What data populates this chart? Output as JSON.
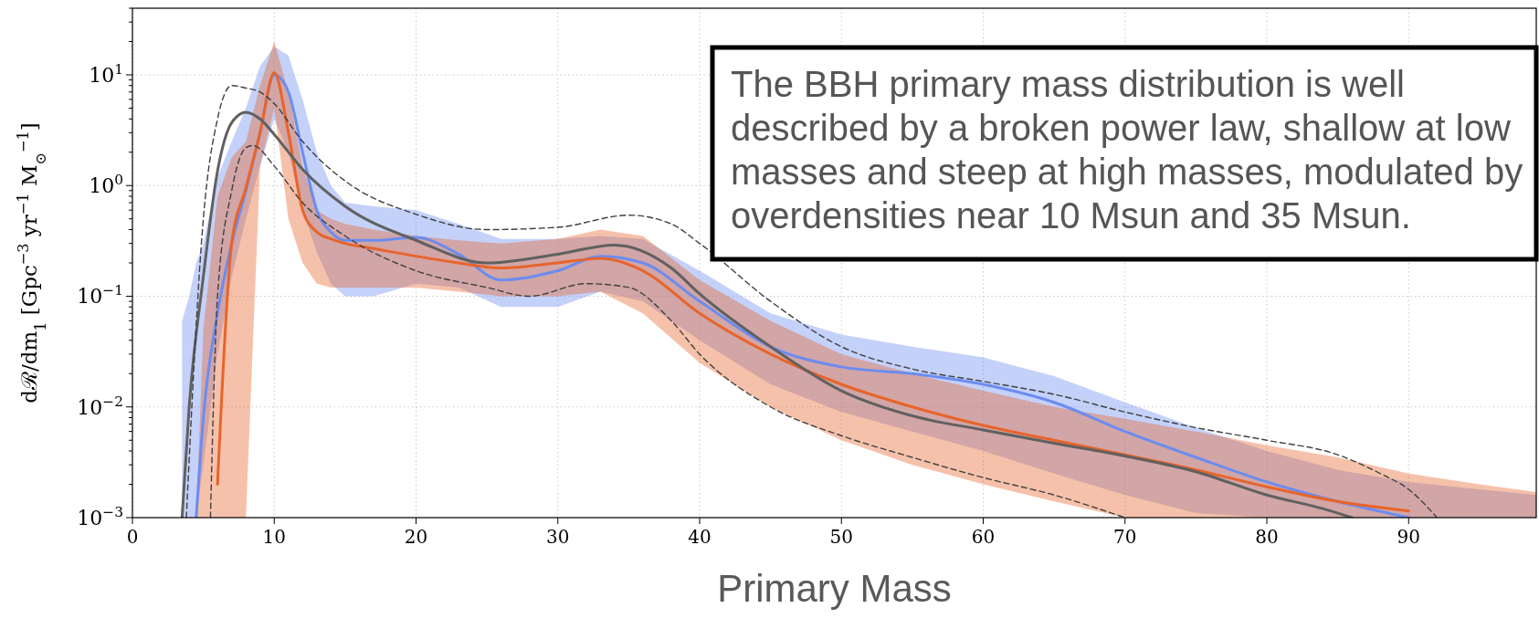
{
  "chart_data": {
    "type": "line",
    "xlabel": "Primary Mass",
    "ylabel": "dℛ/dm$_{1}$ [Gpc$^{−3}$ yr$^{−1}$ M$_{⊙}$$^{−1}$]",
    "annotations": [
      "The BBH primary mass distribution is well described by a broken power law, shallow at low masses and steep at high masses, modulated by overdensities near 10 Msun and 35 Msun."
    ],
    "log": "y",
    "grid": true,
    "xlim": [
      0,
      99
    ],
    "ylim": [
      0.001,
      40
    ],
    "xticks": [
      0,
      10,
      20,
      30,
      40,
      50,
      60,
      70,
      80,
      90
    ],
    "yticks": [
      {
        "value": 0.001,
        "label": "10$^{−3}$"
      },
      {
        "value": 0.01,
        "label": "10$^{−2}$"
      },
      {
        "value": 0.1,
        "label": "10$^{−1}$"
      },
      {
        "value": 1,
        "label": "10$^{0}$"
      },
      {
        "value": 10,
        "label": "10$^{1}$"
      }
    ],
    "series": [
      {
        "color": "#6b8cf0",
        "x": [
          3.5,
          4,
          4.5,
          5,
          6,
          7,
          8,
          9,
          10,
          11,
          12,
          13,
          14,
          15,
          17,
          20,
          23,
          26,
          30,
          33,
          36,
          40,
          45,
          50,
          55,
          60,
          65,
          70,
          75,
          80,
          85,
          90,
          95,
          99
        ],
        "values": [
          null,
          null,
          0.001,
          0.008,
          0.07,
          0.3,
          0.9,
          3,
          10,
          7,
          2,
          0.6,
          0.38,
          0.32,
          0.32,
          0.34,
          0.24,
          0.14,
          0.17,
          0.23,
          0.2,
          0.09,
          0.035,
          0.023,
          0.02,
          0.016,
          0.011,
          0.006,
          0.0035,
          0.0021,
          0.0014,
          0.001,
          null,
          null
        ],
        "lower": [
          0.001,
          0.001,
          0.001,
          0.003,
          0.03,
          0.15,
          0.5,
          1.5,
          4,
          2,
          0.6,
          0.25,
          0.13,
          0.1,
          0.1,
          0.13,
          0.12,
          0.08,
          0.08,
          0.11,
          0.09,
          0.04,
          0.016,
          0.009,
          0.006,
          0.004,
          0.0025,
          0.0016,
          0.0011,
          0.001,
          0.001,
          0.001,
          0.001,
          0.001
        ],
        "upper": [
          0.06,
          0.1,
          0.2,
          0.3,
          1.2,
          2.5,
          5,
          12,
          18,
          15,
          6,
          2,
          1,
          0.7,
          0.65,
          0.6,
          0.45,
          0.33,
          0.33,
          0.35,
          0.33,
          0.17,
          0.07,
          0.045,
          0.035,
          0.028,
          0.019,
          0.011,
          0.0065,
          0.004,
          0.0027,
          0.0021,
          0.0018,
          0.0016
        ]
      },
      {
        "color": "#e8642a",
        "x": [
          4.5,
          5,
          6,
          7,
          8,
          9,
          10,
          11,
          12,
          13,
          14,
          15,
          17,
          20,
          23,
          26,
          30,
          33,
          36,
          40,
          45,
          50,
          55,
          60,
          65,
          70,
          75,
          80,
          85,
          90,
          95,
          99
        ],
        "values": [
          null,
          null,
          0.002,
          0.3,
          0.95,
          3,
          10.5,
          3,
          0.6,
          0.38,
          0.33,
          0.3,
          0.27,
          0.23,
          0.2,
          0.18,
          0.2,
          0.22,
          0.17,
          0.07,
          0.03,
          0.016,
          0.01,
          0.0068,
          0.005,
          0.0037,
          0.0027,
          0.0019,
          0.0014,
          0.00115,
          null,
          null
        ],
        "lower": [
          0.001,
          0.001,
          0.001,
          0.001,
          0.001,
          1.5,
          5,
          0.5,
          0.2,
          0.13,
          0.12,
          0.12,
          0.12,
          0.12,
          0.11,
          0.1,
          0.1,
          0.11,
          0.07,
          0.025,
          0.01,
          0.005,
          0.003,
          0.002,
          0.0014,
          0.001,
          0.001,
          0.001,
          0.001,
          0.001,
          0.001,
          0.001
        ],
        "upper": [
          0.001,
          0.05,
          0.8,
          1.8,
          2.5,
          8,
          20,
          7,
          1.5,
          0.6,
          0.5,
          0.45,
          0.4,
          0.35,
          0.32,
          0.3,
          0.33,
          0.4,
          0.35,
          0.14,
          0.06,
          0.03,
          0.02,
          0.014,
          0.01,
          0.0078,
          0.006,
          0.0045,
          0.0035,
          0.0025,
          0.002,
          0.0017
        ]
      },
      {
        "color": "#606060",
        "x": [
          3.5,
          4,
          5,
          6,
          7,
          8,
          9,
          10,
          12,
          15,
          20,
          25,
          30,
          34,
          38,
          40,
          45,
          50,
          55,
          60,
          65,
          70,
          75,
          80,
          84,
          86
        ],
        "values": [
          0.001,
          0.01,
          0.15,
          1.35,
          3.7,
          4.6,
          4.0,
          2.9,
          1.4,
          0.65,
          0.32,
          0.2,
          0.24,
          0.29,
          0.18,
          0.105,
          0.035,
          0.014,
          0.0083,
          0.0062,
          0.0047,
          0.0036,
          0.0026,
          0.0016,
          0.0012,
          0.001
        ]
      },
      {
        "color": "#404040",
        "line_style": "dashed",
        "x": [
          3.8,
          5,
          6,
          7,
          8,
          9,
          10,
          12,
          15,
          20,
          25,
          30,
          35,
          38,
          40,
          45,
          50,
          55,
          60,
          65,
          70,
          75,
          80,
          85,
          88,
          90,
          92
        ],
        "values": [
          0.001,
          0.5,
          4,
          8,
          7.6,
          7,
          5.5,
          2.5,
          1.1,
          0.55,
          0.4,
          0.42,
          0.54,
          0.45,
          0.3,
          0.09,
          0.035,
          0.022,
          0.017,
          0.013,
          0.009,
          0.0065,
          0.005,
          0.0037,
          0.0025,
          0.0018,
          0.001
        ]
      },
      {
        "color": "#404040",
        "line_style": "dashed",
        "x": [
          5.5,
          6,
          7,
          8,
          8.5,
          10,
          12,
          15,
          20,
          25,
          28,
          32,
          35,
          38,
          40,
          45,
          50,
          55,
          60,
          65,
          70
        ],
        "values": [
          0.001,
          0.1,
          0.9,
          2.2,
          2.3,
          1.5,
          0.7,
          0.35,
          0.17,
          0.12,
          0.1,
          0.13,
          0.12,
          0.06,
          0.03,
          0.01,
          0.0055,
          0.0035,
          0.0023,
          0.0016,
          0.001
        ]
      }
    ]
  }
}
